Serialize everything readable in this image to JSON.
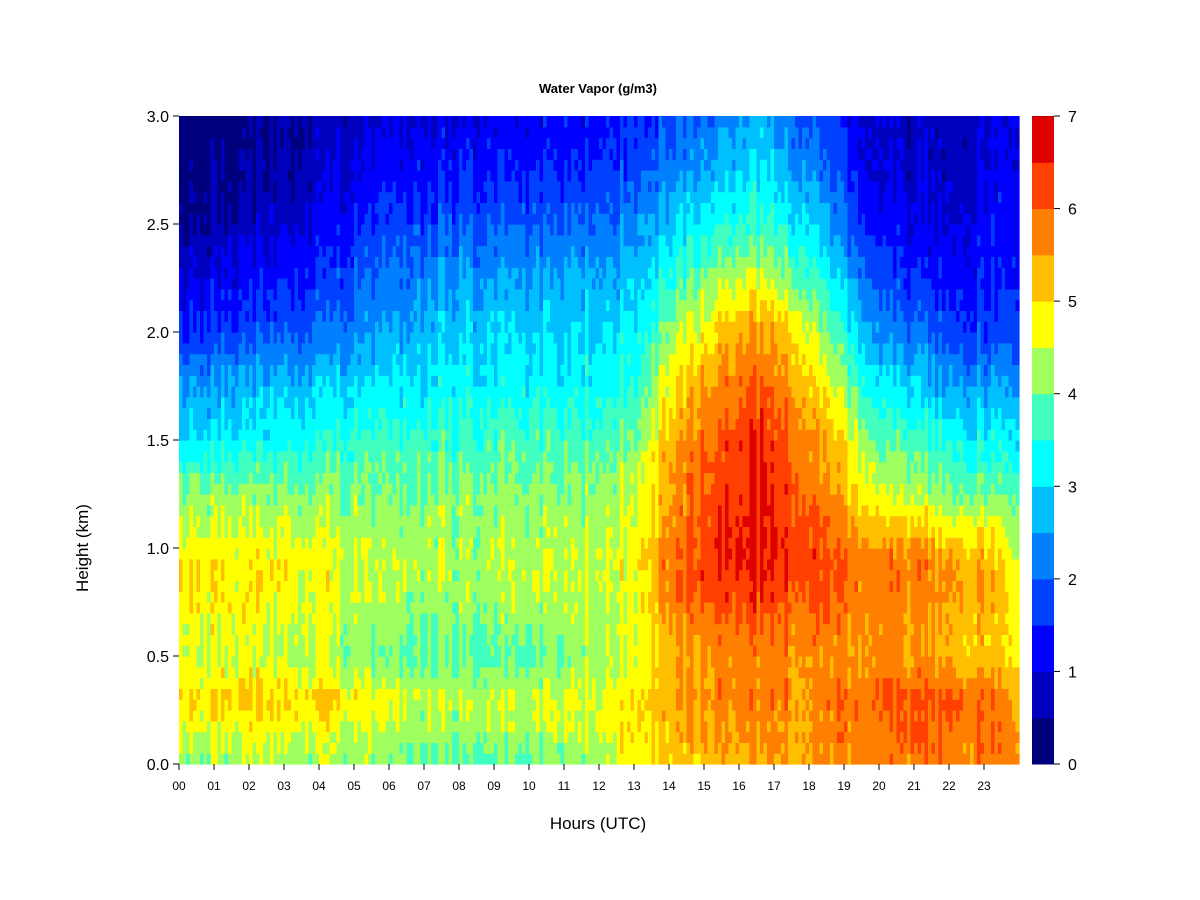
{
  "chart_data": {
    "type": "heatmap",
    "title": "Water Vapor (g/m3)",
    "xlabel": "Hours (UTC)",
    "ylabel": "Height (km)",
    "xlim": [
      0,
      24
    ],
    "ylim": [
      0.0,
      3.0
    ],
    "x_ticks": [
      "00",
      "01",
      "02",
      "03",
      "04",
      "05",
      "06",
      "07",
      "08",
      "09",
      "10",
      "11",
      "12",
      "13",
      "14",
      "15",
      "16",
      "17",
      "18",
      "19",
      "20",
      "21",
      "22",
      "23"
    ],
    "y_ticks": [
      "0.0",
      "0.5",
      "1.0",
      "1.5",
      "2.0",
      "2.5",
      "3.0"
    ],
    "colorbar": {
      "min": 0,
      "max": 7,
      "step": 0.5,
      "tick_labels": [
        "0",
        "1",
        "2",
        "3",
        "4",
        "5",
        "6",
        "7"
      ],
      "colors": [
        "#00007f",
        "#0000bf",
        "#0000ff",
        "#0040ff",
        "#0080ff",
        "#00bfff",
        "#00ffff",
        "#40ffbf",
        "#9fff5f",
        "#ffff00",
        "#ffbf00",
        "#ff8000",
        "#ff4000",
        "#df0000",
        "#8f0000"
      ]
    },
    "grid": false,
    "legend": "right (colorbar)",
    "field_summary": {
      "times_hr": [
        0,
        2,
        4,
        6,
        8,
        10,
        12,
        13,
        14,
        15,
        16,
        16.5,
        17,
        18,
        19,
        20,
        21,
        22,
        23,
        23.9
      ],
      "heights_km": [
        0.0,
        0.2,
        0.3,
        0.5,
        0.75,
        0.9,
        1.0,
        1.25,
        1.5,
        1.75,
        2.0,
        2.25,
        2.5,
        2.75,
        3.0
      ],
      "values": [
        [
          4.2,
          4.2,
          4.2,
          4.1,
          3.8,
          3.8,
          4.3,
          4.8,
          5.0,
          5.2,
          5.4,
          5.4,
          5.5,
          5.5,
          5.6,
          5.7,
          5.8,
          5.8,
          5.8,
          5.6
        ],
        [
          4.7,
          4.8,
          4.8,
          4.4,
          4.3,
          4.4,
          4.6,
          5.0,
          5.2,
          5.6,
          5.6,
          5.7,
          5.6,
          5.5,
          5.8,
          5.9,
          6.0,
          6.0,
          6.0,
          5.6
        ],
        [
          5.0,
          5.1,
          5.1,
          4.6,
          4.4,
          4.5,
          4.6,
          5.0,
          5.4,
          5.7,
          5.8,
          5.8,
          5.7,
          5.7,
          5.8,
          6.1,
          6.1,
          6.2,
          6.0,
          5.5
        ],
        [
          4.5,
          4.5,
          4.3,
          4.0,
          3.8,
          3.8,
          4.3,
          4.6,
          5.2,
          5.5,
          5.7,
          5.7,
          5.6,
          5.6,
          5.6,
          5.6,
          5.5,
          5.4,
          5.2,
          4.9
        ],
        [
          4.9,
          4.8,
          4.6,
          4.3,
          4.2,
          4.3,
          4.4,
          4.7,
          5.6,
          6.1,
          6.3,
          6.3,
          6.2,
          6.1,
          5.8,
          5.7,
          5.6,
          5.5,
          5.4,
          4.8
        ],
        [
          5.0,
          4.9,
          4.7,
          4.4,
          4.3,
          4.4,
          4.5,
          4.8,
          5.8,
          6.3,
          6.5,
          6.6,
          6.5,
          6.3,
          6.0,
          5.8,
          5.8,
          5.7,
          5.6,
          4.7
        ],
        [
          4.8,
          4.7,
          4.6,
          4.4,
          4.3,
          4.3,
          4.4,
          4.7,
          5.7,
          6.3,
          6.6,
          6.6,
          6.5,
          6.3,
          5.9,
          5.6,
          5.6,
          5.4,
          5.2,
          4.5
        ],
        [
          4.2,
          4.2,
          4.1,
          4.1,
          4.1,
          4.1,
          4.2,
          4.5,
          5.4,
          6.1,
          6.4,
          6.6,
          6.4,
          5.9,
          5.3,
          4.6,
          4.3,
          4.1,
          4.0,
          3.9
        ],
        [
          3.0,
          3.2,
          3.4,
          3.7,
          3.7,
          3.7,
          3.8,
          4.0,
          5.3,
          5.9,
          6.3,
          6.5,
          6.3,
          5.7,
          4.9,
          3.9,
          3.7,
          3.5,
          3.3,
          3.2
        ],
        [
          2.5,
          2.7,
          2.9,
          3.1,
          3.2,
          3.2,
          3.3,
          3.6,
          4.7,
          5.5,
          5.9,
          6.0,
          5.9,
          5.2,
          4.2,
          3.1,
          2.9,
          2.6,
          2.5,
          2.5
        ],
        [
          1.5,
          1.7,
          2.0,
          2.6,
          2.9,
          2.9,
          3.0,
          3.2,
          4.1,
          4.8,
          5.4,
          5.6,
          5.4,
          4.6,
          3.5,
          2.3,
          2.0,
          1.8,
          1.7,
          1.7
        ],
        [
          1.0,
          1.3,
          1.5,
          2.2,
          2.5,
          2.5,
          2.6,
          2.8,
          3.4,
          4.1,
          4.5,
          4.6,
          4.4,
          3.8,
          2.8,
          1.8,
          1.5,
          1.4,
          1.4,
          1.5
        ],
        [
          0.4,
          0.7,
          1.1,
          1.7,
          1.9,
          1.9,
          2.1,
          2.4,
          2.8,
          3.3,
          3.5,
          3.6,
          3.5,
          3.1,
          2.1,
          1.3,
          1.0,
          1.0,
          1.2,
          1.3
        ],
        [
          0.3,
          0.4,
          0.8,
          1.3,
          1.4,
          1.4,
          1.6,
          1.8,
          2.2,
          2.6,
          2.9,
          3.1,
          2.9,
          2.4,
          1.6,
          1.0,
          0.8,
          0.8,
          1.0,
          1.2
        ],
        [
          0.0,
          0.3,
          0.6,
          1.0,
          1.0,
          1.1,
          1.3,
          1.5,
          1.7,
          2.1,
          2.4,
          2.7,
          2.4,
          1.9,
          1.3,
          0.8,
          0.7,
          0.8,
          0.9,
          1.0
        ]
      ]
    }
  }
}
